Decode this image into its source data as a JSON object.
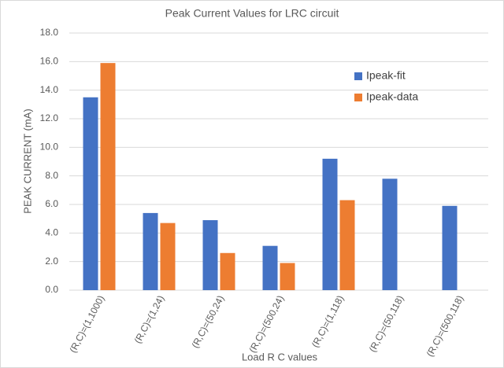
{
  "chart_data": {
    "type": "bar",
    "title": "Peak Current Values for LRC circuit",
    "x_label": "Load R C values",
    "y_label": "PEAK CURRENT (mA)",
    "categories": [
      "(R,C)=(1,1000)",
      "(R,C)=(1,24)",
      "(R,C)=(50,24)",
      "(R,C)=(500,24)",
      "(R,C)=(1,118)",
      "(R,C)=(50,118)",
      "(R,C)=(500,118)"
    ],
    "series": [
      {
        "name": "Ipeak-fit",
        "color": "#4472c4",
        "values": [
          13.5,
          5.4,
          4.9,
          3.1,
          9.2,
          7.8,
          5.9
        ]
      },
      {
        "name": "Ipeak-data",
        "color": "#ed7d31",
        "values": [
          15.9,
          4.7,
          2.6,
          1.9,
          6.3,
          null,
          null
        ]
      }
    ],
    "ylim": [
      0,
      18
    ],
    "yticks": [
      {
        "value": 0,
        "label": "0.0"
      },
      {
        "value": 2,
        "label": "2.0"
      },
      {
        "value": 4,
        "label": "4.0"
      },
      {
        "value": 6,
        "label": "6.0"
      },
      {
        "value": 8,
        "label": "8.0"
      },
      {
        "value": 10,
        "label": "10.0"
      },
      {
        "value": 12,
        "label": "12.0"
      },
      {
        "value": 14,
        "label": "14.0"
      },
      {
        "value": 16,
        "label": "16.0"
      },
      {
        "value": 18,
        "label": "18.0"
      }
    ],
    "grid": true,
    "legend": "upper right"
  }
}
